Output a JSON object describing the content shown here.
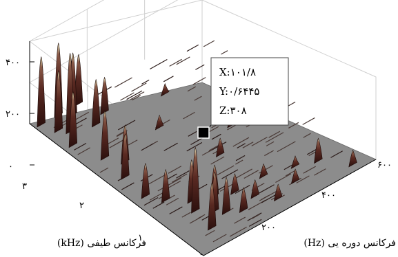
{
  "chart_data": {
    "type": "surface",
    "xlabel": "فرکانس دوره یی (Hz)",
    "ylabel": "فرکانس طیفی (kHz)",
    "xlim": [
      0,
      600
    ],
    "ylim": [
      0,
      3
    ],
    "zlim": [
      0,
      400
    ],
    "x_ticks": [
      "۲۰۰",
      "۴۰۰",
      "۶۰۰"
    ],
    "y_ticks": [
      "۰",
      "۱",
      "۲",
      "۳"
    ],
    "z_ticks": [
      "۰",
      "۲۰۰",
      "۴۰۰"
    ],
    "grid": true,
    "colormap": [
      "#2a0f0d",
      "#5a2a22",
      "#8a5a48",
      "#f2f0c0"
    ],
    "datatip": {
      "x_label": "X:۱۰۱/۸",
      "y_label": "Y:۰/۶۴۴۵",
      "z_label": "Z:۳۰۸",
      "x": 101.8,
      "y": 0.6445,
      "z": 308
    },
    "peaks": [
      {
        "x": 20,
        "y": 2.9,
        "z": 330
      },
      {
        "x": 40,
        "y": 2.7,
        "z": 290
      },
      {
        "x": 30,
        "y": 2.4,
        "z": 260
      },
      {
        "x": 60,
        "y": 2.6,
        "z": 380
      },
      {
        "x": 80,
        "y": 2.9,
        "z": 350
      },
      {
        "x": 110,
        "y": 2.8,
        "z": 300
      },
      {
        "x": 150,
        "y": 2.9,
        "z": 240
      },
      {
        "x": 130,
        "y": 2.5,
        "z": 220
      },
      {
        "x": 180,
        "y": 2.6,
        "z": 170
      },
      {
        "x": 60,
        "y": 2.0,
        "z": 230
      },
      {
        "x": 50,
        "y": 1.6,
        "z": 210
      },
      {
        "x": 90,
        "y": 1.8,
        "z": 180
      },
      {
        "x": 40,
        "y": 1.2,
        "z": 160
      },
      {
        "x": 70,
        "y": 1.0,
        "z": 150
      },
      {
        "x": 101.8,
        "y": 0.6445,
        "z": 308
      },
      {
        "x": 120,
        "y": 0.8,
        "z": 200
      },
      {
        "x": 140,
        "y": 0.5,
        "z": 190
      },
      {
        "x": 160,
        "y": 0.4,
        "z": 170
      },
      {
        "x": 90,
        "y": 0.3,
        "z": 220
      },
      {
        "x": 180,
        "y": 0.7,
        "z": 150
      },
      {
        "x": 200,
        "y": 0.3,
        "z": 110
      },
      {
        "x": 230,
        "y": 0.6,
        "z": 90
      },
      {
        "x": 260,
        "y": 0.4,
        "z": 80
      },
      {
        "x": 300,
        "y": 0.2,
        "z": 70
      },
      {
        "x": 330,
        "y": 0.6,
        "z": 60
      },
      {
        "x": 380,
        "y": 0.3,
        "z": 60
      },
      {
        "x": 420,
        "y": 0.5,
        "z": 50
      },
      {
        "x": 480,
        "y": 0.4,
        "z": 110
      },
      {
        "x": 540,
        "y": 0.1,
        "z": 70
      },
      {
        "x": 300,
        "y": 1.2,
        "z": 80
      },
      {
        "x": 400,
        "y": 1.5,
        "z": 60
      },
      {
        "x": 250,
        "y": 2.0,
        "z": 60
      },
      {
        "x": 350,
        "y": 2.4,
        "z": 50
      }
    ]
  }
}
